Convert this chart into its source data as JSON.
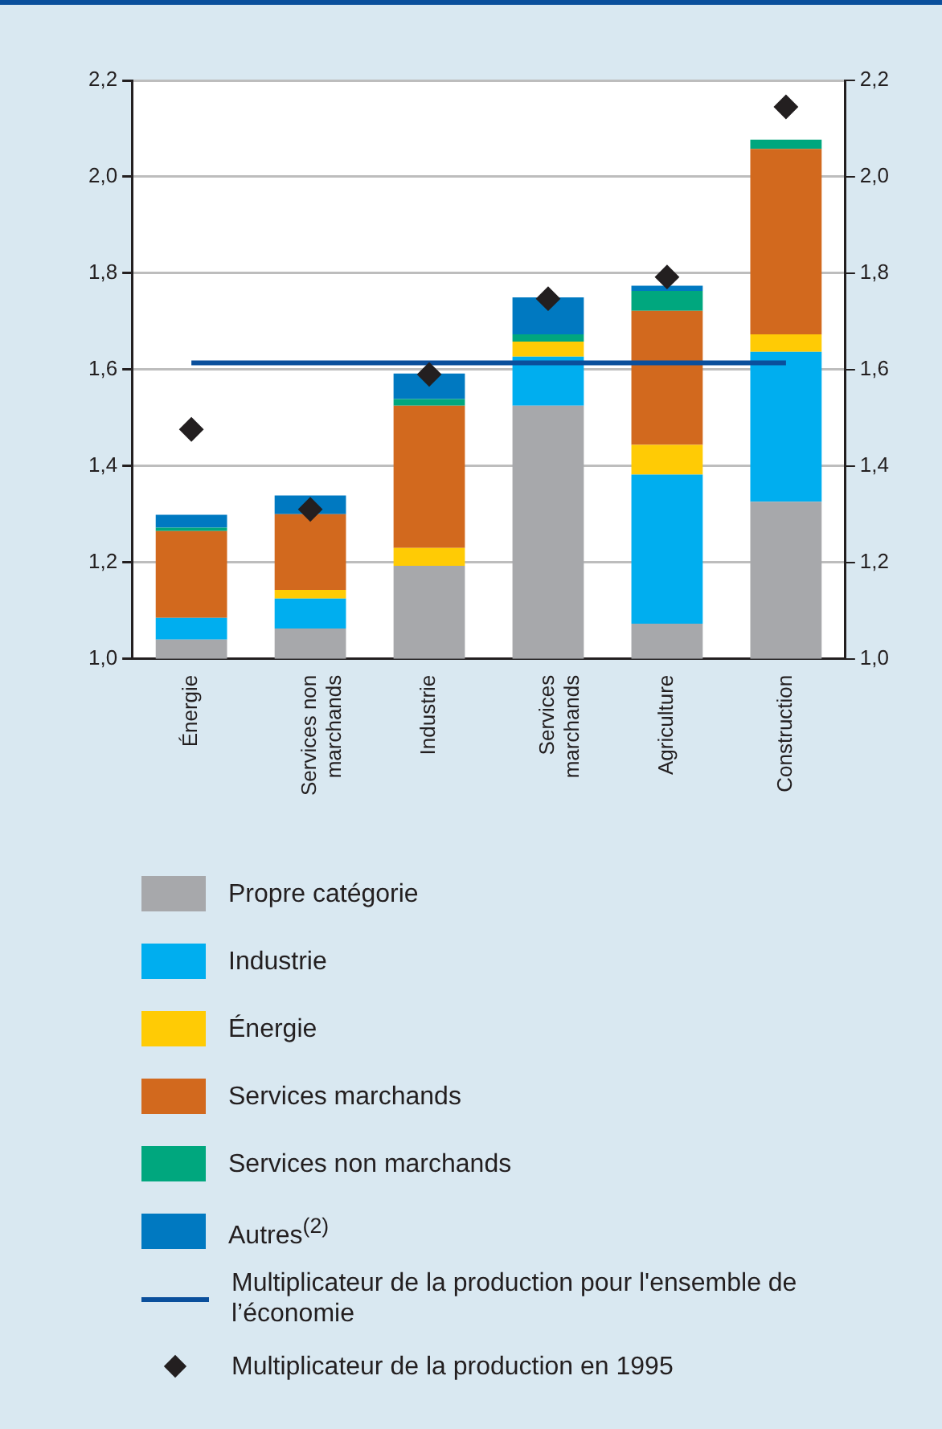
{
  "chart_data": {
    "type": "bar",
    "categories": [
      "Énergie",
      "Services non marchands",
      "Industrie",
      "Services marchands",
      "Agriculture",
      "Construction"
    ],
    "series": [
      {
        "name": "Propre catégorie",
        "color": "#a7a8ab",
        "base": [
          1.0,
          1.0,
          1.0,
          1.0,
          1.0,
          1.0
        ],
        "values": [
          0.04,
          0.063,
          0.193,
          0.525,
          0.073,
          0.326
        ]
      },
      {
        "name": "Industrie",
        "color": "#00aeef",
        "base": [
          1.04,
          1.063,
          null,
          1.525,
          1.073,
          1.326
        ],
        "values": [
          0.045,
          0.062,
          null,
          0.102,
          0.309,
          0.311
        ]
      },
      {
        "name": "Énergie",
        "color": "#ffcb05",
        "base": [
          null,
          1.125,
          1.193,
          1.627,
          1.382,
          1.637
        ],
        "values": [
          null,
          0.018,
          0.037,
          0.031,
          0.062,
          0.036
        ]
      },
      {
        "name": "Services marchands",
        "color": "#d2691e",
        "base": [
          1.085,
          1.143,
          1.23,
          null,
          1.444,
          1.673
        ],
        "values": [
          0.18,
          0.157,
          0.295,
          null,
          0.278,
          0.385
        ]
      },
      {
        "name": "Services non marchands",
        "color": "#00a77e",
        "base": [
          1.265,
          null,
          1.525,
          1.658,
          1.722,
          2.058
        ],
        "values": [
          0.007,
          null,
          0.014,
          0.015,
          0.041,
          0.019
        ]
      },
      {
        "name": "Autres$^{(2)}$",
        "color": "#0079c1",
        "base": [
          1.272,
          1.3,
          1.539,
          1.673,
          1.763,
          null
        ],
        "values": [
          0.027,
          0.039,
          0.053,
          0.077,
          0.011,
          null
        ]
      },
      {
        "name": "Multiplicateur de la production pour l'ensemble de l’économie",
        "type": "line",
        "color": "#0a4f9c",
        "marker": "none",
        "values": [
          1.614,
          1.614,
          1.614,
          1.614,
          1.614,
          1.614
        ]
      },
      {
        "name": "Multiplicateur de la production en 1995",
        "type": "scatter",
        "color": "#231f20",
        "marker": "diamond",
        "values": [
          1.476,
          1.31,
          1.59,
          1.747,
          1.792,
          2.145
        ]
      }
    ],
    "ylim": [
      1.0,
      2.2
    ],
    "yticks": [
      {
        "value": 1.0,
        "label": "1,0"
      },
      {
        "value": 1.2,
        "label": "1,2"
      },
      {
        "value": 1.4,
        "label": "1,4"
      },
      {
        "value": 1.6,
        "label": "1,6"
      },
      {
        "value": 1.8,
        "label": "1,8"
      },
      {
        "value": 2.0,
        "label": "2,0"
      },
      {
        "value": 2.2,
        "label": "2,2"
      }
    ],
    "y2lim": [
      1.0,
      2.2
    ],
    "y2ticks": [
      {
        "value": 1.0,
        "label": "1,0"
      },
      {
        "value": 1.2,
        "label": "1,2"
      },
      {
        "value": 1.4,
        "label": "1,4"
      },
      {
        "value": 1.6,
        "label": "1,6"
      },
      {
        "value": 1.8,
        "label": "1,8"
      },
      {
        "value": 2.0,
        "label": "2,0"
      },
      {
        "value": 2.2,
        "label": "2,2"
      }
    ],
    "grid": "y",
    "legend": "bottom"
  }
}
